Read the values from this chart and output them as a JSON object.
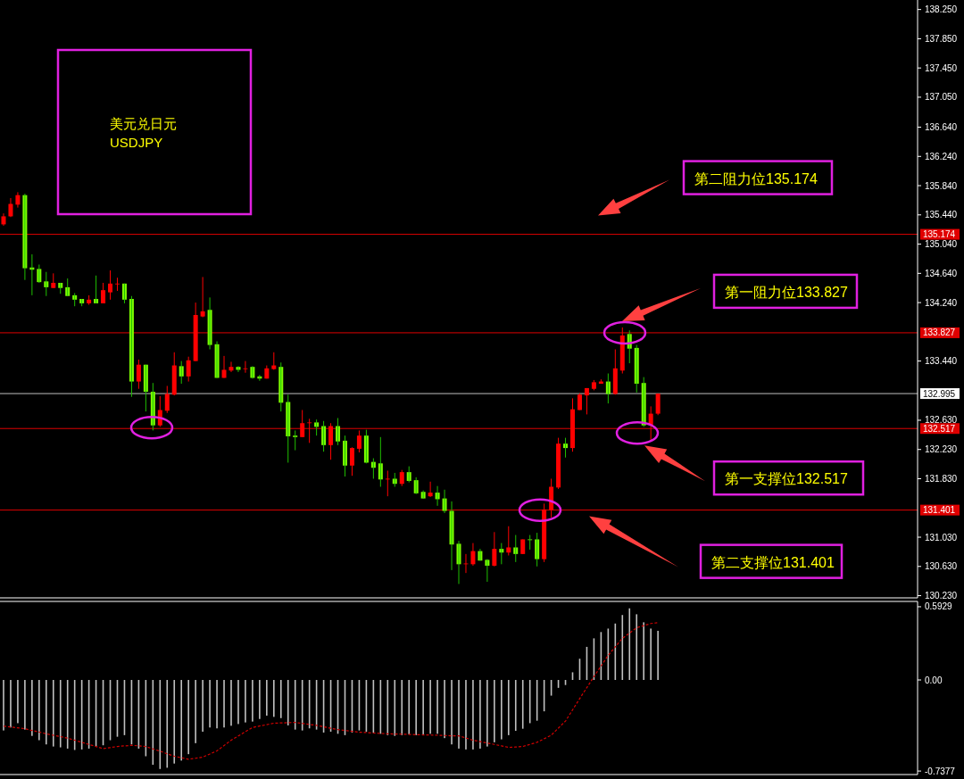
{
  "chart_data": [
    {
      "type": "candlestick",
      "title": "美元兑日元",
      "subtitle": "USDJPY",
      "categories": [
        null,
        null,
        null,
        null,
        null,
        null,
        null,
        null,
        null,
        null,
        null,
        null,
        null,
        null,
        null,
        null,
        null,
        null,
        null,
        null,
        null,
        null,
        null,
        null,
        null,
        null,
        null,
        null,
        null,
        null,
        null,
        null,
        null,
        null,
        null,
        null,
        null,
        null,
        null,
        null,
        null,
        null,
        null,
        null,
        null,
        null,
        null,
        null,
        null,
        null,
        null,
        null,
        null,
        null,
        null,
        null,
        null,
        null,
        null,
        null,
        null,
        null,
        null,
        null,
        null,
        null,
        null,
        null,
        null,
        null,
        null,
        null,
        null,
        null,
        null,
        null,
        null,
        null,
        null,
        null,
        null,
        null,
        null,
        null,
        null,
        null,
        null,
        null,
        null,
        null,
        null,
        null,
        null,
        null,
        null,
        null,
        null,
        null,
        null,
        null,
        null,
        null,
        null,
        null,
        null,
        null,
        null,
        null,
        null,
        null,
        null,
        null,
        null,
        null,
        null,
        null,
        null,
        null,
        null,
        null,
        null,
        null,
        null,
        null,
        null,
        null,
        null,
        null,
        null
      ],
      "ohlc": [
        [
          135.31,
          135.46,
          135.29,
          135.42
        ],
        [
          135.42,
          135.67,
          135.41,
          135.59
        ],
        [
          135.58,
          135.75,
          135.54,
          135.71
        ],
        [
          135.71,
          135.73,
          134.55,
          134.71
        ],
        [
          134.72,
          134.9,
          134.34,
          134.69
        ],
        [
          134.7,
          134.76,
          134.51,
          134.52
        ],
        [
          134.53,
          134.66,
          134.33,
          134.45
        ],
        [
          134.44,
          134.64,
          134.44,
          134.51
        ],
        [
          134.51,
          134.51,
          134.36,
          134.44
        ],
        [
          134.45,
          134.57,
          134.33,
          134.33
        ],
        [
          134.34,
          134.37,
          134.19,
          134.28
        ],
        [
          134.29,
          134.29,
          134.19,
          134.23
        ],
        [
          134.23,
          134.34,
          134.21,
          134.28
        ],
        [
          134.29,
          134.61,
          134.23,
          134.23
        ],
        [
          134.23,
          134.51,
          134.23,
          134.41
        ],
        [
          134.38,
          134.68,
          134.28,
          134.5
        ],
        [
          134.49,
          134.58,
          134.4,
          134.5
        ],
        [
          134.5,
          134.5,
          134.23,
          134.28
        ],
        [
          134.29,
          134.33,
          132.95,
          133.16
        ],
        [
          133.16,
          133.46,
          133.06,
          133.39
        ],
        [
          133.39,
          133.39,
          132.75,
          133.02
        ],
        [
          133.02,
          133.14,
          132.49,
          132.56
        ],
        [
          132.56,
          132.96,
          132.54,
          132.77
        ],
        [
          132.76,
          133.1,
          132.73,
          132.99
        ],
        [
          132.98,
          133.56,
          132.97,
          133.38
        ],
        [
          133.37,
          133.44,
          133.13,
          133.23
        ],
        [
          133.23,
          133.5,
          133.16,
          133.45
        ],
        [
          133.44,
          134.24,
          133.44,
          134.07
        ],
        [
          134.05,
          134.59,
          134.04,
          134.12
        ],
        [
          134.14,
          134.31,
          133.6,
          133.66
        ],
        [
          133.67,
          133.71,
          133.21,
          133.21
        ],
        [
          133.21,
          133.51,
          133.21,
          133.32
        ],
        [
          133.31,
          133.43,
          133.29,
          133.36
        ],
        [
          133.36,
          133.37,
          133.29,
          133.32
        ],
        [
          133.33,
          133.44,
          133.28,
          133.34
        ],
        [
          133.36,
          133.37,
          133.2,
          133.21
        ],
        [
          133.23,
          133.25,
          133.17,
          133.2
        ],
        [
          133.2,
          133.38,
          133.2,
          133.34
        ],
        [
          133.33,
          133.56,
          133.32,
          133.38
        ],
        [
          133.36,
          133.42,
          132.75,
          132.87
        ],
        [
          132.88,
          132.98,
          132.05,
          132.41
        ],
        [
          132.42,
          132.49,
          132.22,
          132.4
        ],
        [
          132.4,
          132.77,
          132.4,
          132.59
        ],
        [
          132.59,
          132.65,
          132.32,
          132.6
        ],
        [
          132.6,
          132.64,
          132.42,
          132.54
        ],
        [
          132.55,
          132.62,
          132.2,
          132.29
        ],
        [
          132.29,
          132.59,
          132.09,
          132.55
        ],
        [
          132.55,
          132.66,
          132.29,
          132.34
        ],
        [
          132.35,
          132.42,
          131.86,
          132.01
        ],
        [
          132.01,
          132.26,
          131.87,
          132.25
        ],
        [
          132.24,
          132.49,
          132.19,
          132.42
        ],
        [
          132.42,
          132.5,
          132.04,
          132.05
        ],
        [
          132.06,
          132.11,
          131.83,
          131.98
        ],
        [
          132.04,
          132.4,
          131.72,
          131.82
        ],
        [
          131.82,
          131.94,
          131.59,
          131.83
        ],
        [
          131.83,
          131.91,
          131.72,
          131.76
        ],
        [
          131.76,
          131.95,
          131.73,
          131.92
        ],
        [
          131.92,
          132.0,
          131.78,
          131.8
        ],
        [
          131.81,
          131.85,
          131.62,
          131.63
        ],
        [
          131.65,
          131.67,
          131.56,
          131.56
        ],
        [
          131.59,
          131.79,
          131.58,
          131.64
        ],
        [
          131.64,
          131.73,
          131.46,
          131.55
        ],
        [
          131.56,
          131.68,
          131.36,
          131.39
        ],
        [
          131.39,
          131.52,
          130.58,
          130.93
        ],
        [
          130.94,
          130.98,
          130.39,
          130.66
        ],
        [
          130.66,
          130.8,
          130.54,
          130.67
        ],
        [
          130.66,
          130.95,
          130.64,
          130.84
        ],
        [
          130.84,
          130.87,
          130.71,
          130.71
        ],
        [
          130.72,
          130.73,
          130.42,
          130.64
        ],
        [
          130.64,
          131.1,
          130.63,
          130.87
        ],
        [
          130.87,
          130.95,
          130.66,
          130.82
        ],
        [
          130.82,
          131.18,
          130.78,
          130.89
        ],
        [
          130.89,
          131.06,
          130.69,
          130.8
        ],
        [
          130.8,
          131.0,
          130.8,
          131.0
        ],
        [
          131.0,
          131.06,
          130.86,
          130.99
        ],
        [
          131.0,
          131.09,
          130.63,
          130.73
        ],
        [
          130.73,
          131.49,
          130.69,
          131.41
        ],
        [
          131.4,
          131.83,
          131.3,
          131.72
        ],
        [
          131.71,
          132.39,
          131.69,
          132.31
        ],
        [
          132.31,
          132.39,
          132.12,
          132.25
        ],
        [
          132.25,
          132.93,
          132.2,
          132.78
        ],
        [
          132.77,
          133.0,
          132.77,
          132.98
        ],
        [
          132.97,
          133.07,
          132.71,
          133.07
        ],
        [
          133.06,
          133.18,
          133.04,
          133.15
        ],
        [
          133.13,
          133.19,
          133.13,
          133.16
        ],
        [
          133.16,
          133.27,
          132.86,
          132.99
        ],
        [
          132.99,
          133.6,
          132.98,
          133.34
        ],
        [
          133.31,
          133.9,
          133.27,
          133.79
        ],
        [
          133.81,
          133.86,
          133.41,
          133.61
        ],
        [
          133.62,
          133.66,
          133.01,
          133.13
        ],
        [
          133.14,
          133.22,
          132.54,
          132.56
        ],
        [
          132.56,
          132.82,
          132.34,
          132.72
        ],
        [
          132.72,
          132.995,
          132.7,
          132.995
        ],
        null,
        null,
        null,
        null,
        null,
        null,
        null,
        null,
        null,
        null,
        null,
        null,
        null,
        null,
        null,
        null,
        null,
        null,
        null,
        null,
        null,
        null,
        null,
        null,
        null,
        null,
        null,
        null,
        null,
        null,
        null,
        null,
        null,
        null,
        null,
        null
      ],
      "ylim": [
        130.2,
        138.38
      ],
      "yticks": [
        {
          "value": 138.25,
          "label": "138.250"
        },
        {
          "value": 137.85,
          "label": "137.850"
        },
        {
          "value": 137.45,
          "label": "137.450"
        },
        {
          "value": 137.05,
          "label": "137.050"
        },
        {
          "value": 136.64,
          "label": "136.640"
        },
        {
          "value": 136.24,
          "label": "136.240"
        },
        {
          "value": 135.84,
          "label": "135.840"
        },
        {
          "value": 135.44,
          "label": "135.440"
        },
        {
          "value": 135.04,
          "label": "135.040"
        },
        {
          "value": 134.64,
          "label": "134.640"
        },
        {
          "value": 134.24,
          "label": "134.240"
        },
        {
          "value": 133.44,
          "label": "133.440"
        },
        {
          "value": 132.63,
          "label": "132.630"
        },
        {
          "value": 132.23,
          "label": "132.230"
        },
        {
          "value": 131.83,
          "label": "131.830"
        },
        {
          "value": 131.03,
          "label": "131.030"
        },
        {
          "value": 130.63,
          "label": "130.630"
        },
        {
          "value": 130.23,
          "label": "130.230"
        }
      ],
      "ref_lines": [
        {
          "axis": "y",
          "value": 135.174,
          "label": "135.174",
          "color": "#e00000"
        },
        {
          "axis": "y",
          "value": 133.827,
          "label": "133.827",
          "color": "#e00000"
        },
        {
          "axis": "y",
          "value": 132.517,
          "label": "132.517",
          "color": "#e00000"
        },
        {
          "axis": "y",
          "value": 131.401,
          "label": "131.401",
          "color": "#e00000"
        },
        {
          "axis": "y",
          "value": 132.995,
          "label": "132.995",
          "color": "#c0c0c0"
        }
      ],
      "annotations": [
        "第二阻力位135.174",
        "第一阻力位133.827",
        "第一支撑位132.517",
        "第二支撑位131.401"
      ]
    },
    {
      "type": "bar",
      "categories": [
        null,
        null,
        null,
        null,
        null,
        null,
        null,
        null,
        null,
        null,
        null,
        null,
        null,
        null,
        null,
        null,
        null,
        null,
        null,
        null,
        null,
        null,
        null,
        null,
        null,
        null,
        null,
        null,
        null,
        null,
        null,
        null,
        null,
        null,
        null,
        null,
        null,
        null,
        null,
        null,
        null,
        null,
        null,
        null,
        null,
        null,
        null,
        null,
        null,
        null,
        null,
        null,
        null,
        null,
        null,
        null,
        null,
        null,
        null,
        null,
        null,
        null,
        null,
        null,
        null,
        null,
        null,
        null,
        null,
        null,
        null,
        null,
        null,
        null,
        null,
        null,
        null,
        null,
        null,
        null,
        null,
        null,
        null,
        null,
        null,
        null,
        null,
        null,
        null,
        null,
        null,
        null,
        null,
        null,
        null,
        null,
        null,
        null,
        null,
        null,
        null,
        null,
        null,
        null,
        null,
        null,
        null,
        null,
        null,
        null,
        null,
        null,
        null,
        null,
        null,
        null,
        null,
        null,
        null,
        null,
        null,
        null,
        null,
        null,
        null,
        null,
        null,
        null,
        null
      ],
      "series": [
        {
          "type": "bar",
          "color": "#c0c0c0",
          "values": [
            -0.409,
            -0.385,
            -0.35,
            -0.402,
            -0.453,
            -0.488,
            -0.522,
            -0.539,
            -0.546,
            -0.556,
            -0.567,
            -0.563,
            -0.556,
            -0.539,
            -0.529,
            -0.488,
            -0.46,
            -0.447,
            -0.522,
            -0.556,
            -0.618,
            -0.687,
            -0.721,
            -0.711,
            -0.677,
            -0.653,
            -0.601,
            -0.512,
            -0.419,
            -0.385,
            -0.392,
            -0.385,
            -0.371,
            -0.357,
            -0.344,
            -0.337,
            -0.316,
            -0.289,
            -0.299,
            -0.309,
            -0.368,
            -0.402,
            -0.409,
            -0.392,
            -0.402,
            -0.426,
            -0.419,
            -0.436,
            -0.447,
            -0.426,
            -0.409,
            -0.419,
            -0.426,
            -0.436,
            -0.447,
            -0.453,
            -0.447,
            -0.44,
            -0.447,
            -0.44,
            -0.436,
            -0.436,
            -0.471,
            -0.522,
            -0.556,
            -0.563,
            -0.563,
            -0.556,
            -0.539,
            -0.505,
            -0.481,
            -0.447,
            -0.412,
            -0.395,
            -0.35,
            -0.33,
            -0.254,
            -0.127,
            -0.064,
            -0.041,
            0.062,
            0.172,
            0.268,
            0.337,
            0.388,
            0.416,
            0.457,
            0.526,
            0.58,
            0.532,
            0.467,
            0.416,
            0.398,
            null,
            null,
            null,
            null,
            null,
            null,
            null,
            null,
            null,
            null,
            null,
            null,
            null,
            null,
            null,
            null,
            null,
            null,
            null,
            null,
            null,
            null,
            null,
            null,
            null,
            null,
            null,
            null,
            null,
            null,
            null,
            null,
            null,
            null,
            null,
            null
          ]
        },
        {
          "type": "line",
          "color": "#d00000",
          "line_style": "dashed",
          "values": [
            -0.374,
            -0.381,
            -0.388,
            -0.395,
            -0.409,
            -0.422,
            -0.436,
            -0.448,
            -0.459,
            -0.471,
            -0.488,
            -0.505,
            -0.522,
            -0.539,
            -0.556,
            -0.548,
            -0.539,
            -0.534,
            -0.529,
            -0.534,
            -0.539,
            -0.558,
            -0.577,
            -0.598,
            -0.618,
            -0.63,
            -0.642,
            -0.634,
            -0.625,
            -0.6,
            -0.574,
            -0.531,
            -0.488,
            -0.454,
            -0.419,
            -0.385,
            -0.373,
            -0.362,
            -0.35,
            -0.348,
            -0.346,
            -0.344,
            -0.352,
            -0.36,
            -0.368,
            -0.379,
            -0.391,
            -0.402,
            -0.409,
            -0.416,
            -0.423,
            -0.426,
            -0.43,
            -0.433,
            -0.436,
            -0.438,
            -0.439,
            -0.441,
            -0.443,
            -0.445,
            -0.446,
            -0.448,
            -0.45,
            -0.452,
            -0.453,
            -0.47,
            -0.488,
            -0.499,
            -0.511,
            -0.522,
            -0.534,
            -0.546,
            -0.543,
            -0.539,
            -0.522,
            -0.505,
            -0.476,
            -0.447,
            -0.39,
            -0.333,
            -0.242,
            -0.151,
            -0.062,
            0.027,
            0.113,
            0.199,
            0.268,
            0.337,
            0.38,
            0.423,
            0.44,
            0.457,
            0.464,
            null,
            null,
            null,
            null,
            null,
            null,
            null,
            null,
            null,
            null,
            null,
            null,
            null,
            null,
            null,
            null,
            null,
            null,
            null,
            null,
            null,
            null,
            null,
            null,
            null,
            null,
            null,
            null,
            null,
            null,
            null,
            null,
            null,
            null,
            null,
            null
          ]
        }
      ],
      "ylim": [
        -0.766,
        0.636
      ],
      "yticks": [
        0.5929,
        {
          "value": 0,
          "label": "0.00"
        },
        -0.7377
      ]
    }
  ]
}
